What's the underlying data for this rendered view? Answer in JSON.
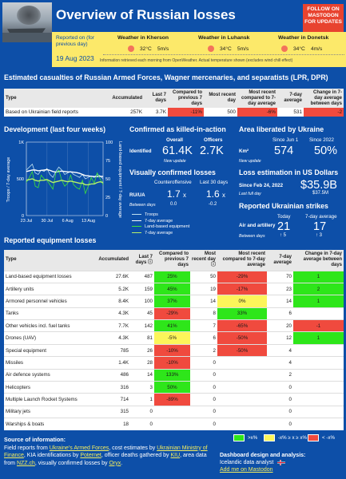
{
  "header": {
    "title": "Overview of Russian losses",
    "follow_label": "FOLLOW ON MASTODON FOR UPDATES",
    "reported_label": "Reported on (for previous day)",
    "report_date": "19 Aug 2023",
    "weather": [
      {
        "title": "Weather in Kherson",
        "temp": "32°C",
        "wind": "5m/s"
      },
      {
        "title": "Weather in Luhansk",
        "temp": "34°C",
        "wind": "5m/s"
      },
      {
        "title": "Weather in Donetsk",
        "temp": "34°C",
        "wind": "4m/s"
      }
    ],
    "weather_note": "Information retrieved each morning from OpenWeather. Actual temperature shown (excludes wind chill effect)"
  },
  "casualties": {
    "title": "Estimated casualties of Russian Armed Forces, Wagner mercenaries, and separatists (LPR, DPR)",
    "headers": [
      "Type",
      "Accumulated",
      "Last 7 days",
      "Compared to previous 7 days",
      "Most recent day",
      "Most recent compared to 7-day average",
      "7-day average",
      "Change in 7-day average between days"
    ],
    "row": [
      "Based on Ukrainian field reports",
      "257K",
      "3.7K",
      "-11%",
      "500",
      "-6%",
      "531",
      "-2"
    ]
  },
  "development": {
    "title": "Development (last four weeks)",
    "y_left_label": "Troops / 7-day average",
    "y_right_label": "Land-based equipment / 7-day average",
    "y_left_ticks": [
      "1K",
      "500",
      "0"
    ],
    "y_right_ticks": [
      "100",
      "75",
      "50",
      "25",
      "0"
    ],
    "x_ticks": [
      "23 Jul",
      "30 Jul",
      "6 Aug",
      "13 Aug"
    ],
    "legend": [
      "Troops",
      "7-day average",
      "Land-based equipment",
      "7-day average"
    ]
  },
  "chart_data": {
    "type": "line",
    "x": [
      "23 Jul",
      "24 Jul",
      "25 Jul",
      "26 Jul",
      "27 Jul",
      "28 Jul",
      "29 Jul",
      "30 Jul",
      "31 Jul",
      "1 Aug",
      "2 Aug",
      "3 Aug",
      "4 Aug",
      "5 Aug",
      "6 Aug",
      "7 Aug",
      "8 Aug",
      "9 Aug",
      "10 Aug",
      "11 Aug",
      "12 Aug",
      "13 Aug",
      "14 Aug",
      "15 Aug",
      "16 Aug",
      "17 Aug",
      "18 Aug"
    ],
    "series": [
      {
        "name": "Troops",
        "axis": "left",
        "values": [
          620,
          660,
          700,
          580,
          560,
          620,
          600,
          640,
          560,
          520,
          600,
          660,
          620,
          560,
          580,
          600,
          560,
          540,
          520,
          560,
          500,
          520,
          540,
          520,
          560,
          540,
          500
        ]
      },
      {
        "name": "7-day average",
        "axis": "left",
        "values": [
          600,
          610,
          620,
          620,
          610,
          615,
          620,
          625,
          615,
          600,
          590,
          600,
          605,
          600,
          595,
          595,
          590,
          585,
          575,
          560,
          545,
          540,
          535,
          530,
          530,
          535,
          531
        ]
      },
      {
        "name": "Land-based equipment",
        "axis": "right",
        "values": [
          45,
          52,
          60,
          40,
          38,
          55,
          50,
          48,
          42,
          36,
          58,
          62,
          48,
          40,
          44,
          55,
          42,
          38,
          36,
          48,
          30,
          40,
          52,
          44,
          58,
          50,
          42
        ]
      },
      {
        "name": "7-day average",
        "axis": "right",
        "values": [
          48,
          49,
          50,
          48,
          47,
          48,
          48,
          49,
          47,
          45,
          46,
          47,
          48,
          47,
          46,
          47,
          46,
          45,
          44,
          44,
          42,
          42,
          43,
          43,
          45,
          46,
          45
        ]
      }
    ],
    "ylim_left": [
      0,
      1000
    ],
    "ylim_right": [
      0,
      100
    ]
  },
  "killed": {
    "title": "Confirmed as killed-in-action",
    "col_overall": "Overall",
    "col_officers": "Officers",
    "row_label": "Identified",
    "overall": "61.4K",
    "officers": "2.7K",
    "new_update": "New update"
  },
  "visual": {
    "title": "Visually confirmed losses",
    "col1": "Counteroffensive",
    "col2": "Last 30 days",
    "row_label": "RU/UA",
    "row_sub": "Between days",
    "v1": "1.7",
    "v1_unit": "x",
    "v1_sub": "0.0",
    "v2": "1.6",
    "v2_unit": "x",
    "v2_sub": "-0.2"
  },
  "liberated": {
    "title": "Area liberated by Ukraine",
    "col1": "Since Jun 1",
    "col2": "Since 2022",
    "row_label": "Km²",
    "v1": "574",
    "v2": "50%",
    "new_update": "New update"
  },
  "loss_usd": {
    "title": "Loss estimation in US Dollars",
    "row_label": "Since Feb 24, 2022",
    "row_sub": "Last full day",
    "value": "$35.9B",
    "sub_value": "$37.5M"
  },
  "strikes": {
    "title": "Reported Ukrainian strikes",
    "col1": "Today",
    "col2": "7-day average",
    "row_label": "Air and artillery",
    "row_sub": "Between days",
    "v1": "21",
    "v1_sub": "↑ 5",
    "v2": "17",
    "v2_sub": "↑ 3"
  },
  "equipment": {
    "title": "Reported equipment losses",
    "headers": [
      "Type",
      "Accumulated",
      "Last 7 days ⓘ",
      "Compared to previous 7 days",
      "Most recent day ⓘ",
      "Most recent compared to 7-day average",
      "7-day average",
      "Change in 7-day average between days"
    ],
    "rows": [
      [
        "Land-based equipment losses",
        "27.6K",
        "487",
        "25%",
        "50",
        "-29%",
        "70",
        "1"
      ],
      [
        "Artillery units",
        "5.2K",
        "159",
        "45%",
        "19",
        "-17%",
        "23",
        "2"
      ],
      [
        "Armored personnel vehicles",
        "8.4K",
        "100",
        "37%",
        "14",
        "0%",
        "14",
        "1"
      ],
      [
        "Tanks",
        "4.3K",
        "45",
        "-29%",
        "8",
        "33%",
        "6",
        ""
      ],
      [
        "Other vehicles incl. fuel tanks",
        "7.7K",
        "142",
        "41%",
        "7",
        "-65%",
        "20",
        "-1"
      ],
      [
        "Drones (UAV)",
        "4.3K",
        "81",
        "-5%",
        "6",
        "-50%",
        "12",
        "1"
      ],
      [
        "Special equipment",
        "785",
        "26",
        "-10%",
        "2",
        "-50%",
        "4",
        ""
      ],
      [
        "Missiles",
        "1.4K",
        "28",
        "-10%",
        "0",
        "",
        "4",
        ""
      ],
      [
        "Air defence systems",
        "486",
        "14",
        "133%",
        "0",
        "",
        "2",
        ""
      ],
      [
        "Helicopters",
        "316",
        "3",
        "50%",
        "0",
        "",
        "0",
        ""
      ],
      [
        "Multiple Launch Rocket Systems",
        "714",
        "1",
        "-89%",
        "0",
        "",
        "0",
        ""
      ],
      [
        "Military jets",
        "315",
        "0",
        "",
        "0",
        "",
        "0",
        ""
      ],
      [
        "Warships & boats",
        "18",
        "0",
        "",
        "0",
        "",
        "0",
        ""
      ]
    ],
    "colors": [
      [
        "",
        "",
        "",
        "green",
        "",
        "red",
        "",
        "green"
      ],
      [
        "",
        "",
        "",
        "green",
        "",
        "red",
        "",
        "green"
      ],
      [
        "",
        "",
        "",
        "green",
        "",
        "yellow",
        "",
        "green"
      ],
      [
        "",
        "",
        "",
        "red",
        "",
        "green",
        "",
        ""
      ],
      [
        "",
        "",
        "",
        "green",
        "",
        "red",
        "",
        "red"
      ],
      [
        "",
        "",
        "",
        "yellow",
        "",
        "red",
        "",
        "green"
      ],
      [
        "",
        "",
        "",
        "red",
        "",
        "red",
        "",
        ""
      ],
      [
        "",
        "",
        "",
        "red",
        "",
        "",
        "",
        ""
      ],
      [
        "",
        "",
        "",
        "green",
        "",
        "",
        "",
        ""
      ],
      [
        "",
        "",
        "",
        "green",
        "",
        "",
        "",
        ""
      ],
      [
        "",
        "",
        "",
        "red",
        "",
        "",
        "",
        ""
      ],
      [
        "",
        "",
        "",
        "",
        "",
        "",
        "",
        ""
      ],
      [
        "",
        "",
        "",
        "",
        "",
        "",
        "",
        ""
      ]
    ]
  },
  "footer": {
    "src_title": "Source of information:",
    "t1": "Field reports from ",
    "l1": "Ukraine's Armed Forces",
    "t2": ", cost estimates by ",
    "l2": "Ukrainian Ministry of Finance",
    "t3": ", KIA identifications by ",
    "l3": "Poternet",
    "t4": ", officer deaths gathered by ",
    "l4": "KIU",
    "t5": ", area data from ",
    "l5": "NZZ.ch",
    "t6": ", visually confirmed losses by ",
    "l6": "Oryx",
    "t7": ".",
    "legend": [
      ">x%",
      "-x% ≥ x ≥ x%",
      "< -x%"
    ],
    "credit_title": "Dashboard design and analysis:",
    "credit_name": "Icelandic data analyst",
    "credit_link": "Add me on Mastodon"
  },
  "colors": {
    "bg": "#0d4fa8",
    "yellow": "#fce96a",
    "green": "#2ee61a",
    "red": "#f04a3e",
    "accent": "#e8432f"
  }
}
